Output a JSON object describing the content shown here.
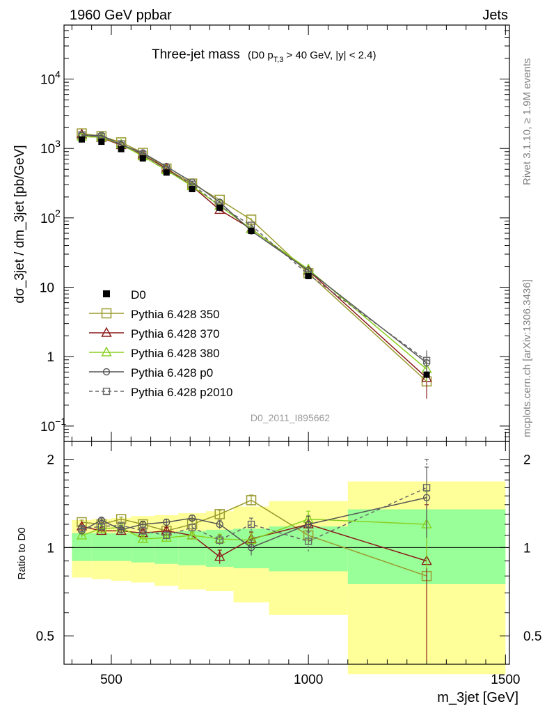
{
  "header": {
    "left": "1960 GeV ppbar",
    "right": "Jets",
    "side_top": "Rivet 3.1.10, ≥ 1.9M events",
    "side_bottom": "mcplots.cern.ch [arXiv:1306.3436]"
  },
  "chart_data": {
    "type": "line",
    "title": "Three-jet mass",
    "title_sub": "(D0 p",
    "title_sub_idx": "T,3",
    "title_sub_rest": " > 40 GeV, |y| < 2.4)",
    "watermark": "D0_2011_I895662",
    "xlabel": "m_3jet [GeV]",
    "ylabel_top": "dσ_3jet / dm_3jet [pb/GeV]",
    "ylabel_bottom": "Ratio to D0",
    "xlim": [
      380,
      1510
    ],
    "ylim_top": [
      0.06,
      60000
    ],
    "ylim_bottom": [
      0.4,
      2.3
    ],
    "y_scale": "log",
    "x_ticks": [
      500,
      1000,
      1500
    ],
    "x_tick_labels": [
      "500",
      "1000",
      "1500"
    ],
    "y_ticks_top": [
      {
        "base": "10",
        "exp": "−1",
        "v": 0.1
      },
      {
        "base": "1",
        "exp": "",
        "v": 1
      },
      {
        "base": "10",
        "exp": "",
        "v": 10
      },
      {
        "base": "10",
        "exp": "2",
        "v": 100
      },
      {
        "base": "10",
        "exp": "3",
        "v": 1000
      },
      {
        "base": "10",
        "exp": "4",
        "v": 10000
      }
    ],
    "y_ticks_bottom": [
      {
        "label": "0.5",
        "v": 0.5
      },
      {
        "label": "1",
        "v": 1
      },
      {
        "label": "2",
        "v": 2
      }
    ],
    "x": [
      425,
      475,
      525,
      580,
      640,
      705,
      775,
      855,
      1000,
      1300
    ],
    "bins": [
      [
        400,
        450
      ],
      [
        450,
        500
      ],
      [
        500,
        550
      ],
      [
        550,
        610
      ],
      [
        610,
        670
      ],
      [
        670,
        740
      ],
      [
        740,
        810
      ],
      [
        810,
        900
      ],
      [
        900,
        1100
      ],
      [
        1100,
        1500
      ]
    ],
    "data": {
      "name": "D0",
      "values": [
        1350,
        1250,
        980,
        720,
        450,
        260,
        140,
        65,
        14.5,
        0.55
      ],
      "band_inner": [
        [
          0.9,
          1.12
        ],
        [
          0.9,
          1.12
        ],
        [
          0.9,
          1.12
        ],
        [
          0.89,
          1.13
        ],
        [
          0.88,
          1.13
        ],
        [
          0.87,
          1.14
        ],
        [
          0.86,
          1.15
        ],
        [
          0.85,
          1.16
        ],
        [
          0.83,
          1.18
        ],
        [
          0.75,
          1.35
        ]
      ],
      "band_outer": [
        [
          0.79,
          1.24
        ],
        [
          0.78,
          1.25
        ],
        [
          0.77,
          1.26
        ],
        [
          0.76,
          1.28
        ],
        [
          0.74,
          1.29
        ],
        [
          0.72,
          1.31
        ],
        [
          0.71,
          1.33
        ],
        [
          0.65,
          1.38
        ],
        [
          0.59,
          1.44
        ],
        [
          0.37,
          1.68
        ]
      ]
    },
    "series": [
      {
        "name": "Pythia 6.428 350",
        "color": "#9a9a2e",
        "marker": "square-big",
        "dash": false,
        "ratio": [
          1.22,
          1.2,
          1.25,
          1.2,
          1.14,
          1.2,
          1.3,
          1.45,
          1.1,
          0.8
        ],
        "err": [
          0.02,
          0.02,
          0.02,
          0.02,
          0.03,
          0.03,
          0.04,
          0.06,
          0.08,
          0.0
        ]
      },
      {
        "name": "Pythia 6.428 370",
        "color": "#8b1a1a",
        "marker": "triangle",
        "dash": false,
        "ratio": [
          1.18,
          1.14,
          1.14,
          1.12,
          1.14,
          1.1,
          0.93,
          1.07,
          1.2,
          0.9
        ],
        "err": [
          0.02,
          0.02,
          0.02,
          0.03,
          0.03,
          0.03,
          0.05,
          0.06,
          0.08,
          0.5
        ]
      },
      {
        "name": "Pythia 6.428 380",
        "color": "#88d020",
        "marker": "triangle",
        "dash": false,
        "ratio": [
          1.1,
          1.16,
          1.17,
          1.07,
          1.08,
          1.1,
          1.07,
          1.06,
          1.25,
          1.2
        ],
        "err": [
          0.02,
          0.02,
          0.02,
          0.03,
          0.03,
          0.03,
          0.04,
          0.06,
          0.08,
          0.35
        ]
      },
      {
        "name": "Pythia 6.428 p0",
        "color": "#555555",
        "marker": "circle",
        "dash": false,
        "ratio": [
          1.14,
          1.24,
          1.15,
          1.2,
          1.22,
          1.26,
          1.2,
          1.0,
          1.2,
          1.48
        ],
        "err": [
          0.02,
          0.02,
          0.02,
          0.03,
          0.03,
          0.03,
          0.04,
          0.06,
          0.08,
          0.4
        ]
      },
      {
        "name": "Pythia 6.428 p2010",
        "color": "#666666",
        "marker": "square",
        "dash": true,
        "ratio": [
          1.16,
          1.18,
          1.19,
          1.14,
          1.1,
          1.17,
          1.06,
          1.2,
          1.05,
          1.6
        ],
        "err": [
          0.02,
          0.02,
          0.02,
          0.03,
          0.03,
          0.03,
          0.04,
          0.06,
          0.08,
          0.4
        ]
      }
    ]
  }
}
